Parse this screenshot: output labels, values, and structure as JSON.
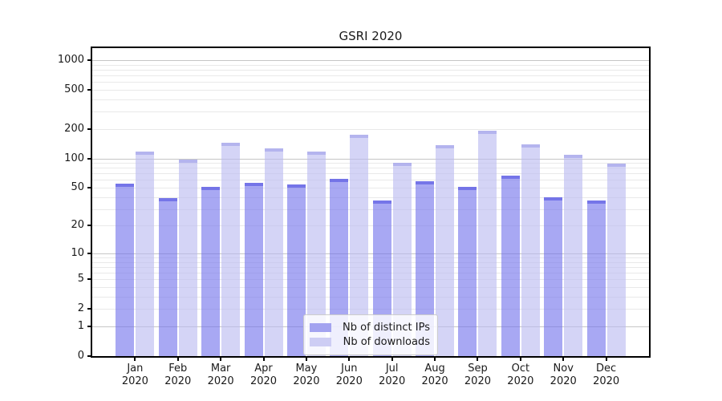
{
  "chart_data": {
    "type": "bar",
    "title": "GSRI 2020",
    "categories": [
      "Jan",
      "Feb",
      "Mar",
      "Apr",
      "May",
      "Jun",
      "Jul",
      "Aug",
      "Sep",
      "Oct",
      "Nov",
      "Dec"
    ],
    "year_label": "2020",
    "series": [
      {
        "name": "Nb of distinct IPs",
        "color": "rgba(115,115,235,0.62)",
        "cap_color": "rgba(85,85,225,0.62)",
        "legend_color": "#a3a3f0",
        "values": [
          55,
          39,
          51,
          56,
          54,
          62,
          37,
          58,
          51,
          66,
          40,
          37
        ]
      },
      {
        "name": "Nb of downloads",
        "color": "rgba(185,185,241,0.62)",
        "cap_color": "rgba(160,160,232,0.62)",
        "legend_color": "#cdcdf4",
        "values": [
          118,
          97,
          144,
          126,
          117,
          174,
          90,
          137,
          193,
          140,
          110,
          88
        ]
      }
    ],
    "y_axis": {
      "scale": "symlog",
      "tick_labels": [
        0,
        1,
        2,
        5,
        10,
        20,
        50,
        100,
        200,
        500,
        1000
      ],
      "major_gridlines": [
        1,
        10,
        100,
        1000
      ],
      "minor_gridlines": [
        2,
        3,
        4,
        5,
        6,
        7,
        8,
        9,
        20,
        30,
        40,
        50,
        60,
        70,
        80,
        90,
        200,
        300,
        400,
        500,
        600,
        700,
        800,
        900
      ],
      "ylim": [
        0,
        1300
      ]
    },
    "grid": true,
    "legend_position": "bottom-center",
    "colors": {
      "major_grid": "#c6c6c6",
      "minor_grid": "#e9e9e9",
      "axis": "#000000",
      "text": "#1a1a1a",
      "background": "#ffffff"
    }
  }
}
